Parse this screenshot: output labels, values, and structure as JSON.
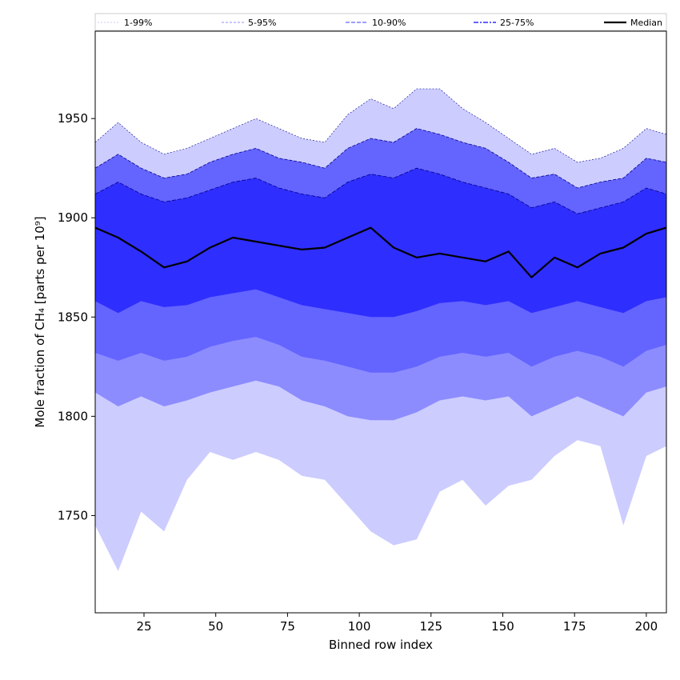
{
  "chart_data": {
    "type": "area",
    "xlabel": "Binned row index",
    "ylabel": "Mole fraction of CH₄ [parts per 10⁹]",
    "xlim": [
      8,
      207
    ],
    "ylim": [
      1701,
      1994
    ],
    "x_ticks": [
      25,
      50,
      75,
      100,
      125,
      150,
      175,
      200
    ],
    "y_ticks": [
      1750,
      1800,
      1850,
      1900,
      1950
    ],
    "grid": false,
    "legend_position": "top",
    "colors": {
      "band_1_99": "#ccccff",
      "band_5_95": "#8c8cff",
      "band_10_90": "#6464ff",
      "band_25_75": "#2e2eff",
      "median": "#000000",
      "band_edge": "#00008b"
    },
    "legend": [
      {
        "label": "1-99%",
        "style": "band_1_99"
      },
      {
        "label": "5-95%",
        "style": "band_5_95"
      },
      {
        "label": "10-90%",
        "style": "band_10_90"
      },
      {
        "label": "25-75%",
        "style": "band_25_75"
      },
      {
        "label": "Median",
        "style": "median"
      }
    ],
    "x": [
      8,
      16,
      24,
      32,
      40,
      48,
      56,
      64,
      72,
      80,
      88,
      96,
      104,
      112,
      120,
      128,
      136,
      144,
      152,
      160,
      168,
      176,
      184,
      192,
      200,
      207
    ],
    "series": [
      {
        "name": "1-99%",
        "lower": [
          1745,
          1722,
          1752,
          1742,
          1768,
          1782,
          1778,
          1782,
          1778,
          1770,
          1768,
          1755,
          1742,
          1735,
          1738,
          1762,
          1768,
          1755,
          1765,
          1768,
          1780,
          1788,
          1785,
          1745,
          1780,
          1785
        ],
        "upper": [
          1938,
          1948,
          1938,
          1932,
          1935,
          1940,
          1945,
          1950,
          1945,
          1940,
          1938,
          1952,
          1960,
          1955,
          1965,
          1965,
          1955,
          1948,
          1940,
          1932,
          1935,
          1928,
          1930,
          1935,
          1945,
          1942
        ]
      },
      {
        "name": "5-95%",
        "lower": [
          1812,
          1805,
          1810,
          1805,
          1808,
          1812,
          1815,
          1818,
          1815,
          1808,
          1805,
          1800,
          1798,
          1798,
          1802,
          1808,
          1810,
          1808,
          1810,
          1800,
          1805,
          1810,
          1805,
          1800,
          1812,
          1815
        ]
      },
      {
        "name": "10-90%",
        "lower": [
          1832,
          1828,
          1832,
          1828,
          1830,
          1835,
          1838,
          1840,
          1836,
          1830,
          1828,
          1825,
          1822,
          1822,
          1825,
          1830,
          1832,
          1830,
          1832,
          1825,
          1830,
          1833,
          1830,
          1825,
          1833,
          1836
        ],
        "upper": [
          1925,
          1932,
          1925,
          1920,
          1922,
          1928,
          1932,
          1935,
          1930,
          1928,
          1925,
          1935,
          1940,
          1938,
          1945,
          1942,
          1938,
          1935,
          1928,
          1920,
          1922,
          1915,
          1918,
          1920,
          1930,
          1928
        ]
      },
      {
        "name": "25-75%",
        "lower": [
          1858,
          1852,
          1858,
          1855,
          1856,
          1860,
          1862,
          1864,
          1860,
          1856,
          1854,
          1852,
          1850,
          1850,
          1853,
          1857,
          1858,
          1856,
          1858,
          1852,
          1855,
          1858,
          1855,
          1852,
          1858,
          1860
        ],
        "upper": [
          1912,
          1918,
          1912,
          1908,
          1910,
          1914,
          1918,
          1920,
          1915,
          1912,
          1910,
          1918,
          1922,
          1920,
          1925,
          1922,
          1918,
          1915,
          1912,
          1905,
          1908,
          1902,
          1905,
          1908,
          1915,
          1912
        ]
      },
      {
        "name": "Median",
        "values": [
          1895,
          1890,
          1883,
          1875,
          1878,
          1885,
          1890,
          1888,
          1886,
          1884,
          1885,
          1890,
          1895,
          1885,
          1880,
          1882,
          1880,
          1878,
          1883,
          1870,
          1880,
          1875,
          1882,
          1885,
          1892,
          1895
        ]
      }
    ]
  }
}
